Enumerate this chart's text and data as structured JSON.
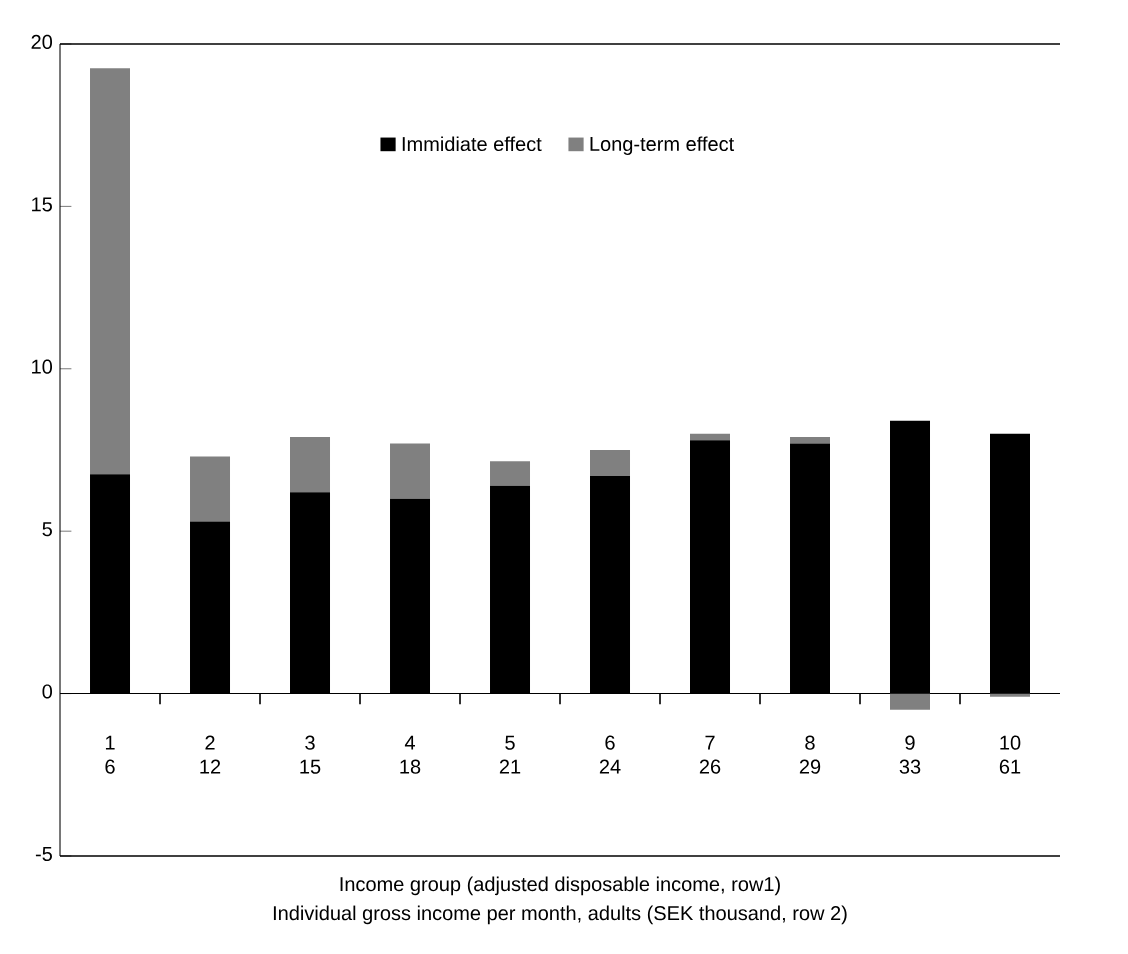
{
  "chart_data": {
    "type": "bar",
    "stacked": true,
    "categories": [
      "1 6",
      "2 12",
      "3 15",
      "4 18",
      "5 21",
      "6 24",
      "7 26",
      "8 29",
      "9 33",
      "10 61"
    ],
    "series": [
      {
        "name": "Immidiate effect",
        "color": "#000000",
        "values": [
          6.75,
          5.3,
          6.2,
          6.0,
          6.4,
          6.7,
          7.8,
          7.7,
          8.4,
          8.0
        ]
      },
      {
        "name": "Long-term effect",
        "color": "#808080",
        "values": [
          12.5,
          2.0,
          1.7,
          1.7,
          0.75,
          0.8,
          0.2,
          0.2,
          -0.5,
          -0.1
        ]
      }
    ],
    "xlabel": "Income group (adjusted disposable income, row1)",
    "annotations": [
      "Individual gross income per month, adults (SEK thousand, row 2)"
    ],
    "ylim": [
      -5,
      20
    ],
    "yticks": [
      -5,
      0,
      5,
      10,
      15,
      20
    ],
    "legend": "top",
    "grid": false
  }
}
